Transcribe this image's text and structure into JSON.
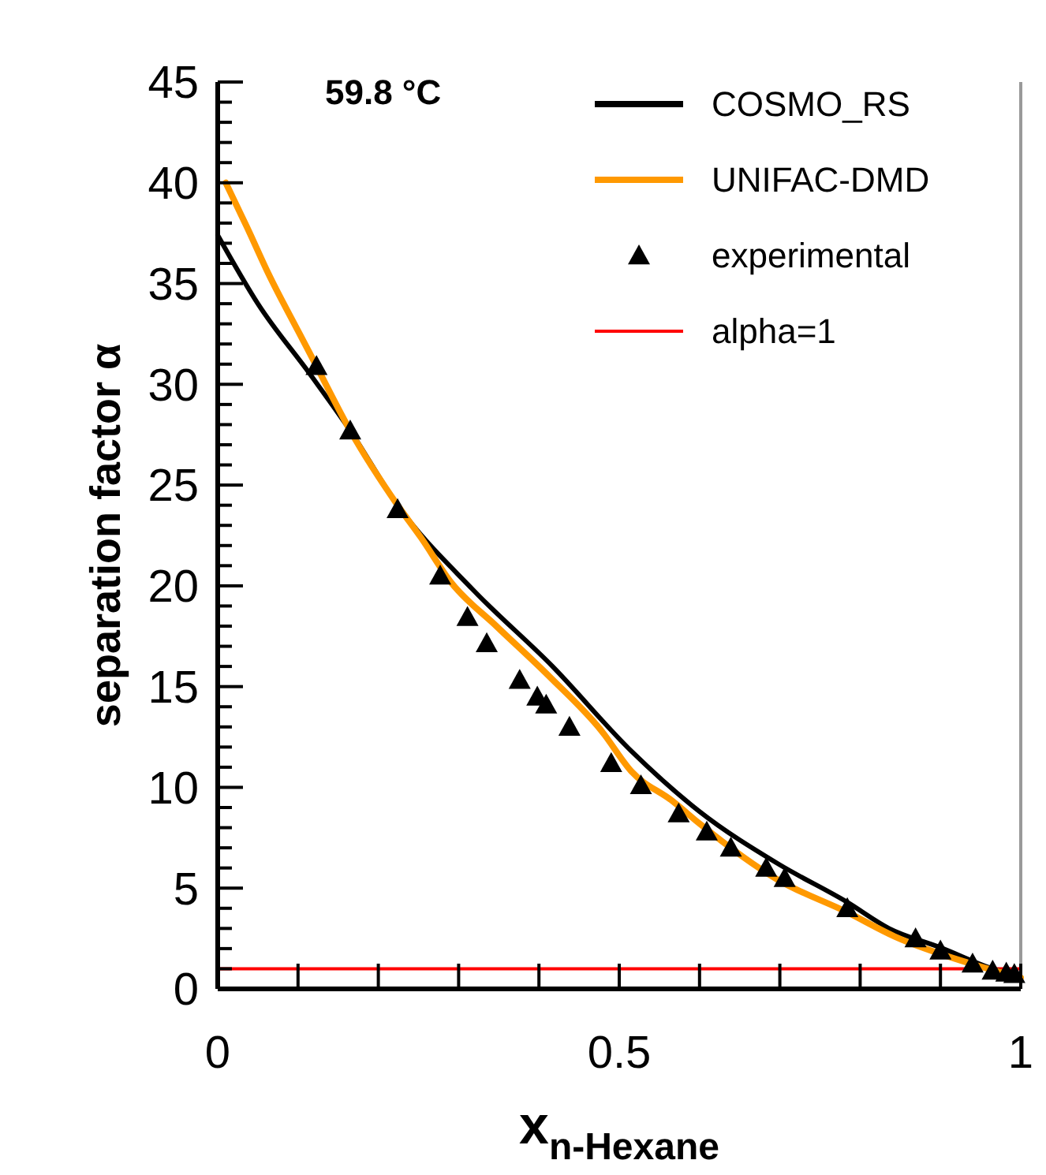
{
  "chart_data": {
    "type": "line",
    "annotations": [
      "59.8 °C"
    ],
    "xlabel": "x$_{n-Hexane}$",
    "ylabel": "separation factor α",
    "xlim": [
      0,
      1
    ],
    "ylim": [
      0,
      45
    ],
    "xticks": [
      0,
      {
        "value": 0.1,
        "label": null
      },
      {
        "value": 0.2,
        "label": null
      },
      {
        "value": 0.3,
        "label": null
      },
      {
        "value": 0.4,
        "label": null
      },
      0.5,
      {
        "value": 0.6,
        "label": null
      },
      {
        "value": 0.7,
        "label": null
      },
      {
        "value": 0.8,
        "label": null
      },
      {
        "value": 0.9,
        "label": null
      },
      1
    ],
    "yticks": [
      0,
      {
        "value": 1,
        "label": null
      },
      {
        "value": 2,
        "label": null
      },
      {
        "value": 3,
        "label": null
      },
      {
        "value": 4,
        "label": null
      },
      5,
      {
        "value": 6,
        "label": null
      },
      {
        "value": 7,
        "label": null
      },
      {
        "value": 8,
        "label": null
      },
      {
        "value": 9,
        "label": null
      },
      10,
      {
        "value": 11,
        "label": null
      },
      {
        "value": 12,
        "label": null
      },
      {
        "value": 13,
        "label": null
      },
      {
        "value": 14,
        "label": null
      },
      15,
      {
        "value": 16,
        "label": null
      },
      {
        "value": 17,
        "label": null
      },
      {
        "value": 18,
        "label": null
      },
      {
        "value": 19,
        "label": null
      },
      20,
      {
        "value": 21,
        "label": null
      },
      {
        "value": 22,
        "label": null
      },
      {
        "value": 23,
        "label": null
      },
      {
        "value": 24,
        "label": null
      },
      25,
      {
        "value": 26,
        "label": null
      },
      {
        "value": 27,
        "label": null
      },
      {
        "value": 28,
        "label": null
      },
      {
        "value": 29,
        "label": null
      },
      30,
      {
        "value": 31,
        "label": null
      },
      {
        "value": 32,
        "label": null
      },
      {
        "value": 33,
        "label": null
      },
      {
        "value": 34,
        "label": null
      },
      35,
      {
        "value": 36,
        "label": null
      },
      {
        "value": 37,
        "label": null
      },
      {
        "value": 38,
        "label": null
      },
      {
        "value": 39,
        "label": null
      },
      40,
      {
        "value": 41,
        "label": null
      },
      {
        "value": 42,
        "label": null
      },
      {
        "value": 43,
        "label": null
      },
      {
        "value": 44,
        "label": null
      },
      45
    ],
    "grid": false,
    "legend": "top right",
    "series": [
      {
        "name": "COSMO_RS",
        "color": "#000000",
        "marker": "none",
        "line_style": "solid",
        "x": [
          0,
          0.05,
          0.115,
          0.165,
          0.224,
          0.318,
          0.417,
          0.515,
          0.6,
          0.698,
          0.784,
          0.836,
          0.9,
          0.961,
          1
        ],
        "values": [
          37.4,
          34.0,
          30.5,
          27.7,
          24.0,
          19.8,
          16.0,
          11.8,
          8.8,
          6.2,
          4.3,
          3.0,
          2.05,
          1.05,
          0.55
        ]
      },
      {
        "name": "UNIFAC-DMD",
        "color": "#ff9900",
        "marker": "none",
        "line_style": "solid",
        "x": [
          0.01,
          0.037,
          0.063,
          0.102,
          0.123,
          0.165,
          0.224,
          0.253,
          0.29,
          0.347,
          0.413,
          0.478,
          0.515,
          0.567,
          0.6,
          0.698,
          0.784,
          0.843,
          0.934,
          1
        ],
        "values": [
          40.0,
          37.75,
          35.5,
          32.5,
          30.9,
          27.7,
          24.0,
          22.4,
          20.2,
          18.0,
          15.5,
          12.8,
          10.8,
          9.3,
          8.2,
          5.4,
          3.8,
          2.6,
          1.3,
          0.55
        ]
      },
      {
        "name": "experimental",
        "type": "scatter",
        "color": "#000000",
        "marker": "triangle",
        "x": [
          0.123,
          0.165,
          0.224,
          0.277,
          0.311,
          0.335,
          0.376,
          0.398,
          0.409,
          0.438,
          0.49,
          0.527,
          0.574,
          0.609,
          0.639,
          0.683,
          0.706,
          0.784,
          0.869,
          0.9,
          0.94,
          0.965,
          0.982,
          0.992
        ],
        "values": [
          30.9,
          27.7,
          23.8,
          20.5,
          18.45,
          17.15,
          15.33,
          14.5,
          14.1,
          13.0,
          11.2,
          10.1,
          8.7,
          7.8,
          7.0,
          6.0,
          5.5,
          4.0,
          2.5,
          1.9,
          1.25,
          0.9,
          0.8,
          0.73
        ]
      }
    ],
    "ref_lines": [
      {
        "axis": "y",
        "value": 1,
        "label": "alpha=1",
        "color": "#ff0000",
        "line_style": "solid"
      }
    ]
  }
}
